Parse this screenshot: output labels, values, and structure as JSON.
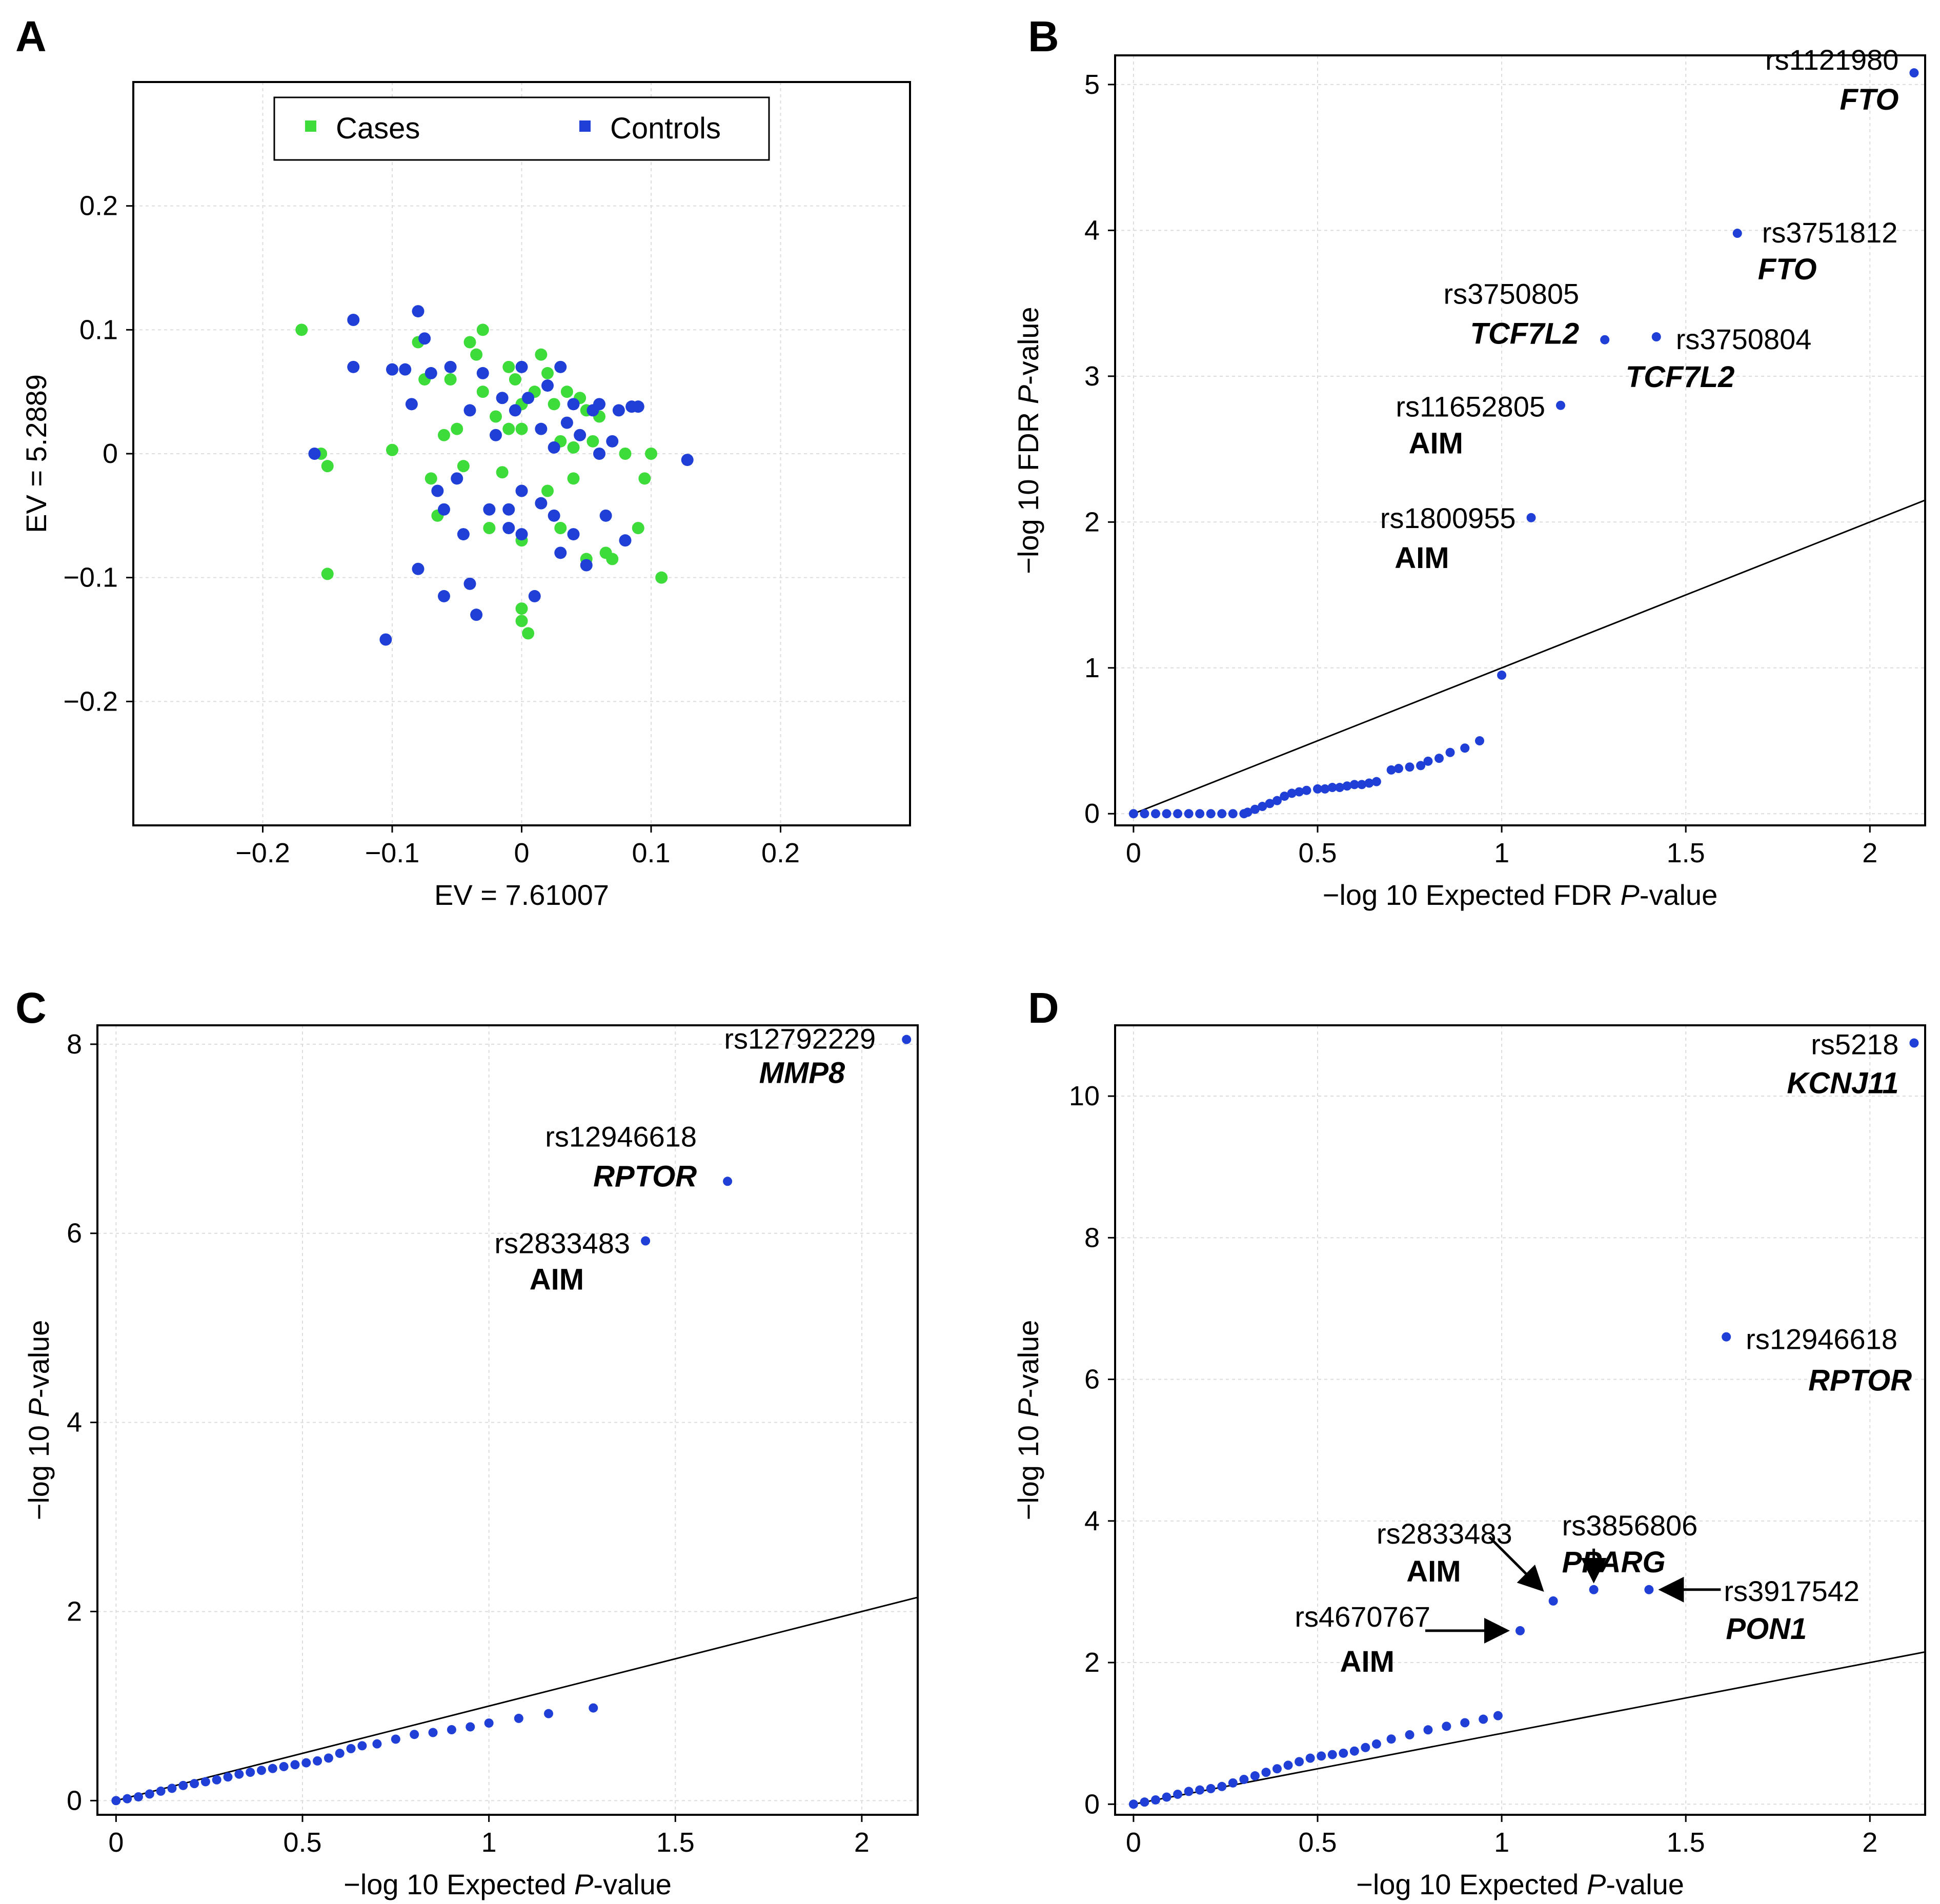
{
  "colors": {
    "cases": "#3edc3a",
    "controls": "#1f3fd6",
    "axis": "#000000",
    "grid": "#dcdcdc"
  },
  "chart_data": [
    {
      "panel": "A",
      "type": "scatter",
      "xlabel": "EV = 7.61007",
      "ylabel": "EV = 5.2889",
      "xlim": [
        -0.3,
        0.3
      ],
      "ylim": [
        -0.3,
        0.3
      ],
      "xticks": [
        -0.2,
        -0.1,
        0,
        0.1,
        0.2
      ],
      "xtick_labels": [
        "−0.2",
        "−0.1",
        "0",
        "0.1",
        "0.2"
      ],
      "yticks": [
        -0.2,
        -0.1,
        0,
        0.1,
        0.2
      ],
      "ytick_labels": [
        "−0.2",
        "−0.1",
        "0",
        "0.1",
        "0.2"
      ],
      "legend": [
        {
          "name": "Cases",
          "color": "#3edc3a"
        },
        {
          "name": "Controls",
          "color": "#1f3fd6"
        }
      ],
      "legend_position": "top-center",
      "series": [
        {
          "name": "Cases",
          "color": "#3edc3a",
          "points": [
            [
              -0.17,
              0.1
            ],
            [
              -0.155,
              0.0
            ],
            [
              -0.15,
              -0.01
            ],
            [
              -0.15,
              -0.097
            ],
            [
              -0.1,
              0.003
            ],
            [
              -0.08,
              0.09
            ],
            [
              -0.075,
              0.06
            ],
            [
              -0.07,
              -0.02
            ],
            [
              -0.065,
              -0.05
            ],
            [
              -0.06,
              0.015
            ],
            [
              -0.055,
              0.06
            ],
            [
              -0.05,
              0.02
            ],
            [
              -0.045,
              -0.01
            ],
            [
              -0.04,
              0.09
            ],
            [
              -0.035,
              0.08
            ],
            [
              -0.03,
              0.1
            ],
            [
              -0.03,
              0.05
            ],
            [
              -0.025,
              -0.06
            ],
            [
              -0.02,
              0.03
            ],
            [
              -0.015,
              -0.015
            ],
            [
              -0.01,
              0.07
            ],
            [
              -0.01,
              0.02
            ],
            [
              -0.005,
              0.06
            ],
            [
              0.0,
              0.04
            ],
            [
              0.0,
              0.02
            ],
            [
              0.0,
              -0.07
            ],
            [
              0.0,
              -0.125
            ],
            [
              0.0,
              -0.135
            ],
            [
              0.005,
              -0.145
            ],
            [
              0.01,
              0.05
            ],
            [
              0.015,
              0.08
            ],
            [
              0.02,
              0.065
            ],
            [
              0.02,
              -0.03
            ],
            [
              0.025,
              0.04
            ],
            [
              0.03,
              0.01
            ],
            [
              0.03,
              -0.06
            ],
            [
              0.035,
              0.05
            ],
            [
              0.04,
              -0.02
            ],
            [
              0.04,
              0.005
            ],
            [
              0.045,
              0.045
            ],
            [
              0.05,
              0.035
            ],
            [
              0.05,
              -0.085
            ],
            [
              0.055,
              0.01
            ],
            [
              0.06,
              0.03
            ],
            [
              0.065,
              -0.08
            ],
            [
              0.07,
              -0.085
            ],
            [
              0.08,
              0.0
            ],
            [
              0.09,
              -0.06
            ],
            [
              0.095,
              -0.02
            ],
            [
              0.1,
              0.0
            ],
            [
              0.108,
              -0.1
            ]
          ]
        },
        {
          "name": "Controls",
          "color": "#1f3fd6",
          "points": [
            [
              -0.16,
              0.0
            ],
            [
              -0.13,
              0.108
            ],
            [
              -0.13,
              0.07
            ],
            [
              -0.105,
              -0.15
            ],
            [
              -0.1,
              0.068
            ],
            [
              -0.09,
              0.068
            ],
            [
              -0.085,
              0.04
            ],
            [
              -0.08,
              0.115
            ],
            [
              -0.08,
              -0.093
            ],
            [
              -0.075,
              0.093
            ],
            [
              -0.07,
              0.065
            ],
            [
              -0.065,
              -0.03
            ],
            [
              -0.06,
              -0.045
            ],
            [
              -0.06,
              -0.115
            ],
            [
              -0.055,
              0.07
            ],
            [
              -0.05,
              -0.02
            ],
            [
              -0.045,
              -0.065
            ],
            [
              -0.04,
              -0.105
            ],
            [
              -0.04,
              0.035
            ],
            [
              -0.035,
              -0.13
            ],
            [
              -0.03,
              0.065
            ],
            [
              -0.025,
              -0.045
            ],
            [
              -0.02,
              0.015
            ],
            [
              -0.015,
              0.045
            ],
            [
              -0.01,
              -0.06
            ],
            [
              -0.01,
              -0.045
            ],
            [
              -0.005,
              0.035
            ],
            [
              0.0,
              0.07
            ],
            [
              0.0,
              -0.03
            ],
            [
              0.0,
              -0.065
            ],
            [
              0.005,
              0.045
            ],
            [
              0.01,
              -0.115
            ],
            [
              0.015,
              0.02
            ],
            [
              0.015,
              -0.04
            ],
            [
              0.02,
              0.055
            ],
            [
              0.025,
              -0.05
            ],
            [
              0.025,
              0.005
            ],
            [
              0.03,
              0.07
            ],
            [
              0.03,
              -0.08
            ],
            [
              0.035,
              0.025
            ],
            [
              0.04,
              0.04
            ],
            [
              0.04,
              -0.065
            ],
            [
              0.045,
              0.015
            ],
            [
              0.05,
              -0.09
            ],
            [
              0.055,
              0.035
            ],
            [
              0.06,
              0.0
            ],
            [
              0.06,
              0.04
            ],
            [
              0.065,
              -0.05
            ],
            [
              0.07,
              0.01
            ],
            [
              0.075,
              0.035
            ],
            [
              0.08,
              -0.07
            ],
            [
              0.085,
              0.038
            ],
            [
              0.09,
              0.038
            ],
            [
              0.128,
              -0.005
            ]
          ]
        }
      ]
    },
    {
      "panel": "B",
      "type": "scatter",
      "xlabel": "−log 10 Expected FDR P-value",
      "ylabel": "−log 10 FDR P-value",
      "xlim": [
        -0.05,
        2.15
      ],
      "ylim": [
        -0.08,
        5.2
      ],
      "xticks": [
        0,
        0.5,
        1,
        1.5,
        2
      ],
      "yticks": [
        0,
        1,
        2,
        3,
        4,
        5
      ],
      "reference_line": [
        [
          0,
          0
        ],
        [
          2.15,
          2.15
        ]
      ],
      "series": [
        {
          "name": "SNPs",
          "color": "#1f3fd6",
          "x": [
            0.0,
            0.03,
            0.06,
            0.09,
            0.12,
            0.15,
            0.18,
            0.21,
            0.24,
            0.27,
            0.3,
            0.31,
            0.33,
            0.35,
            0.37,
            0.39,
            0.41,
            0.43,
            0.45,
            0.47,
            0.5,
            0.52,
            0.54,
            0.56,
            0.58,
            0.6,
            0.62,
            0.64,
            0.66,
            0.7,
            0.72,
            0.75,
            0.78,
            0.8,
            0.83,
            0.86,
            0.9,
            0.94,
            1.0,
            1.08,
            1.16,
            1.28,
            1.42,
            1.64,
            2.12
          ],
          "y": [
            0,
            0,
            0,
            0,
            0,
            0,
            0,
            0,
            0,
            0,
            0,
            0.01,
            0.03,
            0.05,
            0.07,
            0.09,
            0.12,
            0.14,
            0.15,
            0.16,
            0.17,
            0.17,
            0.18,
            0.18,
            0.19,
            0.2,
            0.2,
            0.21,
            0.22,
            0.3,
            0.31,
            0.32,
            0.33,
            0.36,
            0.38,
            0.42,
            0.45,
            0.5,
            0.95,
            2.03,
            2.8,
            3.25,
            3.27,
            3.98,
            5.08
          ]
        }
      ],
      "annotations": [
        {
          "snp": "rs1121980",
          "gene": "FTO",
          "x": 2.12,
          "y": 5.08,
          "gene_italic": true
        },
        {
          "snp": "rs3751812",
          "gene": "FTO",
          "x": 1.64,
          "y": 3.98,
          "gene_italic": true
        },
        {
          "snp": "rs3750805",
          "gene": "TCF7L2",
          "x": 1.28,
          "y": 3.25,
          "gene_italic": true
        },
        {
          "snp": "rs3750804",
          "gene": "TCF7L2",
          "x": 1.42,
          "y": 3.27,
          "gene_italic": true
        },
        {
          "snp": "rs11652805",
          "gene": "AIM",
          "x": 1.16,
          "y": 2.8,
          "gene_italic": false
        },
        {
          "snp": "rs1800955",
          "gene": "AIM",
          "x": 1.08,
          "y": 2.03,
          "gene_italic": false
        }
      ]
    },
    {
      "panel": "C",
      "type": "scatter",
      "xlabel": "−log 10 Expected P-value",
      "ylabel": "−log 10 P-value",
      "xlim": [
        -0.05,
        2.15
      ],
      "ylim": [
        -0.15,
        8.2
      ],
      "xticks": [
        0,
        0.5,
        1,
        1.5,
        2
      ],
      "yticks": [
        0,
        2,
        4,
        6,
        8
      ],
      "reference_line": [
        [
          0,
          0
        ],
        [
          2.15,
          2.15
        ]
      ],
      "series": [
        {
          "name": "SNPs",
          "color": "#1f3fd6",
          "x": [
            0.0,
            0.03,
            0.06,
            0.09,
            0.12,
            0.15,
            0.18,
            0.21,
            0.24,
            0.27,
            0.3,
            0.33,
            0.36,
            0.39,
            0.42,
            0.45,
            0.48,
            0.51,
            0.54,
            0.57,
            0.6,
            0.63,
            0.66,
            0.7,
            0.75,
            0.8,
            0.85,
            0.9,
            0.95,
            1.0,
            1.08,
            1.16,
            1.28,
            1.42,
            1.64,
            2.12
          ],
          "y": [
            0,
            0.02,
            0.04,
            0.07,
            0.1,
            0.13,
            0.16,
            0.18,
            0.2,
            0.22,
            0.25,
            0.28,
            0.3,
            0.32,
            0.34,
            0.36,
            0.38,
            0.4,
            0.42,
            0.45,
            0.5,
            0.55,
            0.58,
            0.6,
            0.65,
            0.7,
            0.72,
            0.75,
            0.78,
            0.82,
            0.87,
            0.92,
            0.98,
            5.92,
            6.55,
            8.05
          ]
        }
      ],
      "annotations": [
        {
          "snp": "rs12792229",
          "gene": "MMP8",
          "x": 2.12,
          "y": 8.05,
          "gene_italic": true
        },
        {
          "snp": "rs12946618",
          "gene": "RPTOR",
          "x": 1.64,
          "y": 6.55,
          "gene_italic": true
        },
        {
          "snp": "rs2833483",
          "gene": "AIM",
          "x": 1.42,
          "y": 5.92,
          "gene_italic": false
        }
      ]
    },
    {
      "panel": "D",
      "type": "scatter",
      "xlabel": "−log 10 Expected P-value",
      "ylabel": "−log 10 P-value",
      "xlim": [
        -0.05,
        2.15
      ],
      "ylim": [
        -0.15,
        11.0
      ],
      "xticks": [
        0,
        0.5,
        1,
        1.5,
        2
      ],
      "yticks": [
        0,
        2,
        4,
        6,
        8,
        10
      ],
      "reference_line": [
        [
          0,
          0
        ],
        [
          2.15,
          2.15
        ]
      ],
      "series": [
        {
          "name": "SNPs",
          "color": "#1f3fd6",
          "x": [
            0.0,
            0.03,
            0.06,
            0.09,
            0.12,
            0.15,
            0.18,
            0.21,
            0.24,
            0.27,
            0.3,
            0.33,
            0.36,
            0.39,
            0.42,
            0.45,
            0.48,
            0.51,
            0.54,
            0.57,
            0.6,
            0.63,
            0.66,
            0.7,
            0.75,
            0.8,
            0.85,
            0.9,
            0.95,
            0.99,
            1.05,
            1.14,
            1.25,
            1.4,
            1.61,
            2.12
          ],
          "y": [
            0,
            0.03,
            0.06,
            0.1,
            0.14,
            0.18,
            0.2,
            0.22,
            0.25,
            0.3,
            0.35,
            0.4,
            0.45,
            0.5,
            0.55,
            0.6,
            0.65,
            0.68,
            0.7,
            0.72,
            0.75,
            0.8,
            0.85,
            0.92,
            0.98,
            1.05,
            1.1,
            1.15,
            1.2,
            1.25,
            2.45,
            2.87,
            3.03,
            3.03,
            6.6,
            10.75
          ]
        }
      ],
      "annotations": [
        {
          "snp": "rs5218",
          "gene": "KCNJ11",
          "x": 2.12,
          "y": 10.75,
          "gene_italic": true
        },
        {
          "snp": "rs12946618",
          "gene": "RPTOR",
          "x": 1.61,
          "y": 6.6,
          "gene_italic": true
        },
        {
          "snp": "rs3856806",
          "gene": "PPARG",
          "x": 1.25,
          "y": 3.03,
          "gene_italic": true
        },
        {
          "snp": "rs2833483",
          "gene": "AIM",
          "x": 1.14,
          "y": 2.87,
          "gene_italic": false
        },
        {
          "snp": "rs3917542",
          "gene": "PON1",
          "x": 1.4,
          "y": 3.03,
          "gene_italic": true
        },
        {
          "snp": "rs4670767",
          "gene": "AIM",
          "x": 1.05,
          "y": 2.45,
          "gene_italic": false
        }
      ]
    }
  ]
}
